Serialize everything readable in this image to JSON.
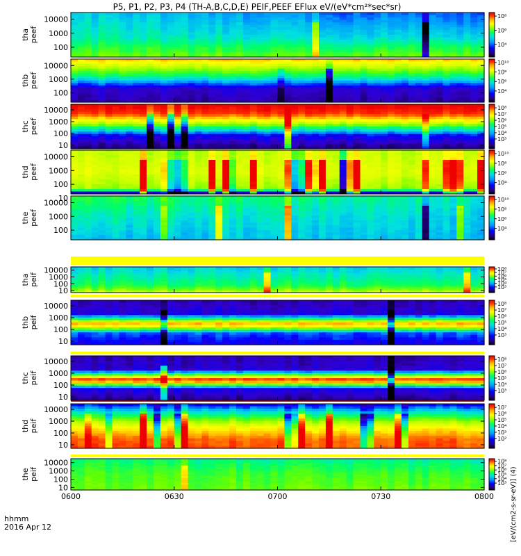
{
  "chart_data": {
    "type": "heatmap",
    "title": "P5, P1, P2, P3, P4 (TH-A,B,C,D,E) PEIF,PEEF EFlux eV/(eV*cm²*sec*sr)",
    "colorbar_label": "[eV/(cm2-s-sr-eV)] (4)",
    "x_axis": {
      "ticks": [
        "0600",
        "0630",
        "0700",
        "0730",
        "0800"
      ],
      "tick_hours": [
        6.0,
        6.5,
        7.0,
        7.5,
        8.0
      ],
      "range_hours": [
        6.0,
        8.0
      ],
      "annotation_line1": "hhmm",
      "annotation_line2": "2016 Apr 12"
    },
    "y_scale": "log",
    "colormap": [
      "#000000",
      "#1a0066",
      "#3300cc",
      "#0000ff",
      "#0099ff",
      "#00e0e0",
      "#00ff66",
      "#66ff00",
      "#ccff00",
      "#ffff00",
      "#ffaa00",
      "#ff3300",
      "#ee0000"
    ],
    "panels": [
      {
        "name": "tha-peef",
        "label_line1": "tha",
        "label_line2": "peef",
        "yticks": [
          "10000",
          "1000",
          "100"
        ],
        "ytick_values": [
          10000,
          1000,
          100
        ],
        "ylim": [
          20,
          30000
        ],
        "cbar_ticks": [
          "10⁸",
          "10⁶",
          "10⁴"
        ],
        "cbar_levels": [
          0.92,
          0.6,
          0.28
        ],
        "bands": [
          [
            0.0,
            0.4
          ],
          [
            0.55,
            0.45
          ],
          [
            1.0,
            0.58
          ]
        ],
        "trend": -0.12,
        "spike_rate": 0.05
      },
      {
        "name": "thb-peef",
        "label_line1": "thb",
        "label_line2": "peef",
        "yticks": [
          "10000",
          "1000",
          "100"
        ],
        "ytick_values": [
          10000,
          1000,
          100
        ],
        "ylim": [
          20,
          30000
        ],
        "cbar_ticks": [
          "10¹⁰",
          "10⁸",
          "10⁶",
          "10⁴"
        ],
        "cbar_levels": [
          0.92,
          0.7,
          0.48,
          0.26
        ],
        "bands": [
          [
            0.0,
            0.78
          ],
          [
            0.4,
            0.48
          ],
          [
            0.7,
            0.18
          ],
          [
            1.0,
            0.14
          ]
        ],
        "trend": 0.0,
        "spike_rate": 0.03
      },
      {
        "name": "thc-peef",
        "label_line1": "thc",
        "label_line2": "peef",
        "yticks": [
          "10000",
          "1000",
          "100",
          "10"
        ],
        "ytick_values": [
          10000,
          1000,
          100,
          10
        ],
        "ylim": [
          5,
          30000
        ],
        "cbar_ticks": [
          "10⁸",
          "10⁷",
          "10⁶",
          "10⁵",
          "10⁴",
          "10³"
        ],
        "cbar_levels": [
          0.92,
          0.78,
          0.64,
          0.5,
          0.36,
          0.22
        ],
        "bands": [
          [
            0.0,
            1.0
          ],
          [
            0.2,
            0.92
          ],
          [
            0.45,
            0.62
          ],
          [
            0.7,
            0.25
          ],
          [
            1.0,
            0.1
          ]
        ],
        "trend": 0.0,
        "spike_rate": 0.04
      },
      {
        "name": "thd-peef",
        "label_line1": "thd",
        "label_line2": "peef",
        "yticks": [
          "10000",
          "1000",
          "100",
          "10"
        ],
        "ytick_values": [
          10000,
          1000,
          100,
          10
        ],
        "ylim": [
          20,
          30000
        ],
        "cbar_ticks": [
          "10¹⁰",
          "10⁸",
          "10⁶",
          "10⁴"
        ],
        "cbar_levels": [
          0.92,
          0.7,
          0.48,
          0.26
        ],
        "bands": [
          [
            0.0,
            0.66
          ],
          [
            0.5,
            0.7
          ],
          [
            0.92,
            0.62
          ],
          [
            1.0,
            0.2
          ]
        ],
        "trend": 0.0,
        "spike_rate": 0.25
      },
      {
        "name": "the-peef",
        "label_line1": "the",
        "label_line2": "peef",
        "yticks": [
          "10000",
          "1000",
          "100"
        ],
        "ytick_values": [
          10000,
          1000,
          100
        ],
        "ylim": [
          20,
          30000
        ],
        "cbar_ticks": [
          "10¹⁰",
          "10⁸",
          "10⁶",
          "10⁴"
        ],
        "cbar_levels": [
          0.92,
          0.7,
          0.48,
          0.26
        ],
        "bands": [
          [
            0.0,
            0.52
          ],
          [
            0.5,
            0.44
          ],
          [
            1.0,
            0.38
          ]
        ],
        "trend": -0.08,
        "spike_rate": 0.04
      },
      {
        "name": "tha-peif",
        "label_line1": "tha",
        "label_line2": "peif",
        "yticks": [
          "10000",
          "1000",
          "100",
          "10"
        ],
        "ytick_values": [
          10000,
          1000,
          100,
          10
        ],
        "ylim": [
          5,
          30000
        ],
        "cbar_ticks": [
          "10⁸",
          "10⁷",
          "10⁶",
          "10⁵",
          "10⁴",
          "10³"
        ],
        "cbar_levels": [
          0.92,
          0.78,
          0.64,
          0.5,
          0.36,
          0.22
        ],
        "bands": [
          [
            0.0,
            0.4
          ],
          [
            0.4,
            0.46
          ],
          [
            0.75,
            0.52
          ],
          [
            1.0,
            0.66
          ]
        ],
        "trend": 0.0,
        "spike_rate": 0.06
      },
      {
        "name": "thb-peif",
        "label_line1": "thb",
        "label_line2": "peif",
        "yticks": [
          "10000",
          "1000",
          "100",
          "10"
        ],
        "ytick_values": [
          10000,
          1000,
          100,
          10
        ],
        "ylim": [
          5,
          30000
        ],
        "cbar_ticks": [
          "10⁸",
          "10⁷",
          "10⁶",
          "10⁵",
          "10⁴",
          "10³"
        ],
        "cbar_levels": [
          0.92,
          0.78,
          0.64,
          0.5,
          0.36,
          0.22
        ],
        "bands": [
          [
            0.0,
            0.15
          ],
          [
            0.3,
            0.2
          ],
          [
            0.55,
            0.86
          ],
          [
            0.75,
            0.3
          ],
          [
            1.0,
            0.22
          ]
        ],
        "trend": 0.0,
        "spike_rate": 0.03
      },
      {
        "name": "thc-peif",
        "label_line1": "thc",
        "label_line2": "peif",
        "yticks": [
          "10000",
          "1000",
          "100",
          "10"
        ],
        "ytick_values": [
          10000,
          1000,
          100,
          10
        ],
        "ylim": [
          5,
          30000
        ],
        "cbar_ticks": [
          "10⁸",
          "10⁷",
          "10⁶",
          "10⁵",
          "10⁴",
          "10³"
        ],
        "cbar_levels": [
          0.92,
          0.78,
          0.64,
          0.5,
          0.36,
          0.22
        ],
        "bands": [
          [
            0.0,
            0.15
          ],
          [
            0.3,
            0.18
          ],
          [
            0.55,
            0.96
          ],
          [
            0.75,
            0.22
          ],
          [
            1.0,
            0.12
          ]
        ],
        "trend": 0.0,
        "spike_rate": 0.03
      },
      {
        "name": "thd-peif",
        "label_line1": "thd",
        "label_line2": "peif",
        "yticks": [
          "10000",
          "1000",
          "100",
          "10"
        ],
        "ytick_values": [
          10000,
          1000,
          100,
          10
        ],
        "ylim": [
          5,
          30000
        ],
        "cbar_ticks": [
          "10⁷",
          "10⁶",
          "10⁵",
          "10⁴",
          "10³",
          "10²"
        ],
        "cbar_levels": [
          0.92,
          0.78,
          0.64,
          0.5,
          0.36,
          0.22
        ],
        "bands": [
          [
            0.0,
            0.25
          ],
          [
            0.2,
            0.46
          ],
          [
            0.5,
            0.72
          ],
          [
            0.8,
            0.88
          ],
          [
            1.0,
            0.9
          ]
        ],
        "trend": 0.0,
        "spike_rate": 0.2
      },
      {
        "name": "the-peif",
        "label_line1": "the",
        "label_line2": "peif",
        "yticks": [
          "10000",
          "1000",
          "100",
          "10"
        ],
        "ytick_values": [
          10000,
          1000,
          100,
          10
        ],
        "ylim": [
          5,
          30000
        ],
        "cbar_ticks": [
          "10⁸",
          "10⁷",
          "10⁶",
          "10⁵",
          "10⁴",
          "10³"
        ],
        "cbar_levels": [
          0.92,
          0.78,
          0.64,
          0.5,
          0.36,
          0.22
        ],
        "bands": [
          [
            0.0,
            0.5
          ],
          [
            0.5,
            0.56
          ],
          [
            1.0,
            0.58
          ]
        ],
        "trend": -0.04,
        "spike_rate": 0.03
      }
    ]
  }
}
